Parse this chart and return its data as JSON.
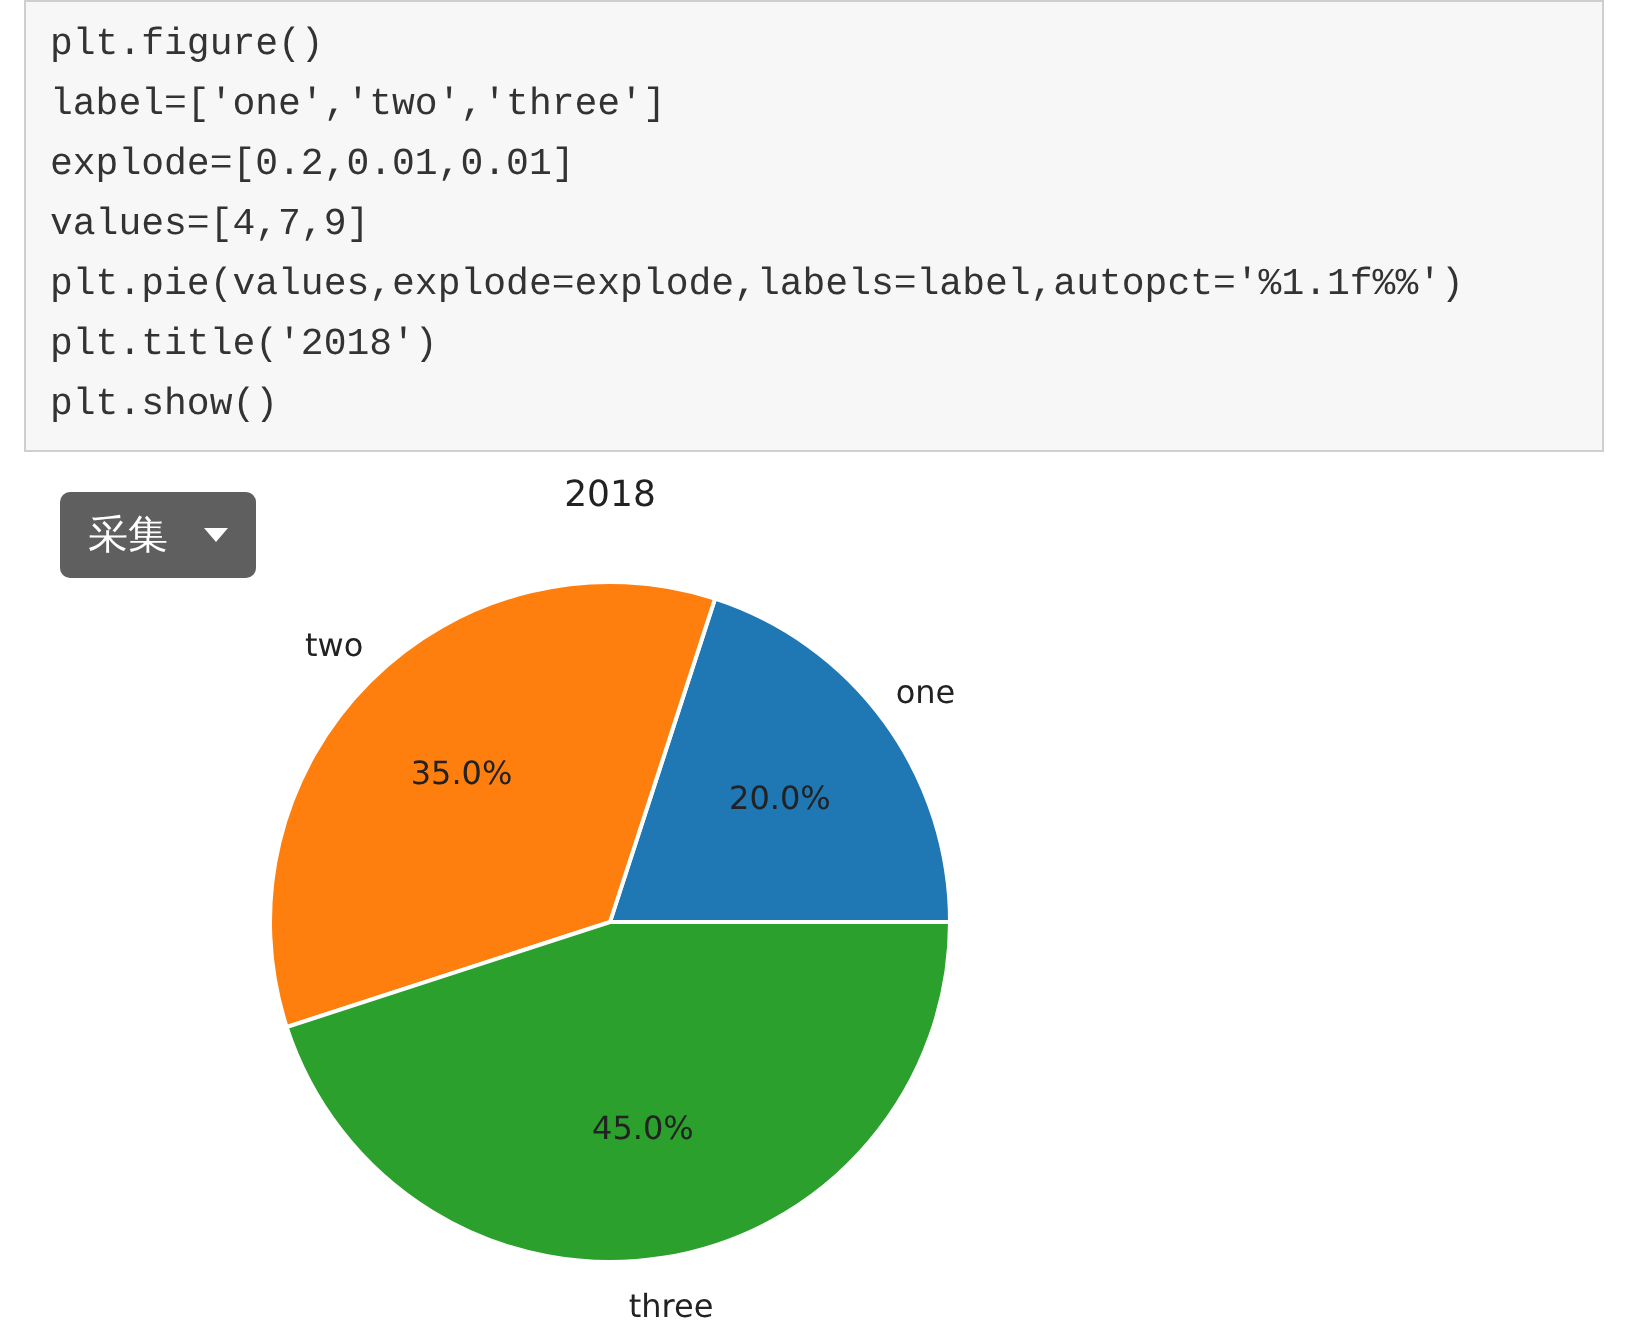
{
  "chart_data": {
    "type": "pie",
    "title": "2018",
    "categories": [
      "one",
      "two",
      "three"
    ],
    "values": [
      20,
      35,
      45
    ],
    "colors": [
      "#1f77b4",
      "#ff7f0e",
      "#2ca02c"
    ],
    "value_labels": [
      "20.0%",
      "35.0%",
      "45.0%"
    ],
    "annotations": [
      "plt.figure()",
      "label=['one','two','three']",
      "explode=[0.2,0.01,0.01]",
      "values=[4,7,9]",
      "plt.pie(values,explode=explode,labels=label,autopct='%1.1f%%')",
      "plt.title('2018')",
      "plt.show()",
      "采集"
    ]
  }
}
